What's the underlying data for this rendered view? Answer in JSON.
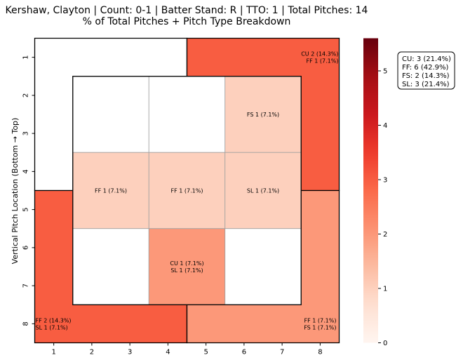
{
  "chart_data": {
    "type": "heatmap",
    "title": "Kershaw, Clayton | Count: 0-1 | Batter Stand: R | TTO: 1 | Total Pitches: 14",
    "subtitle": "% of Total Pitches + Pitch Type Breakdown",
    "xlabel": "",
    "ylabel": "Vertical Pitch Location (Bottom → Top)",
    "x_ticks": [
      "1",
      "2",
      "3",
      "4",
      "5",
      "6",
      "7",
      "8"
    ],
    "y_ticks": [
      "1",
      "2",
      "3",
      "4",
      "5",
      "6",
      "7",
      "8"
    ],
    "xlim": [
      0.5,
      8.5
    ],
    "ylim": [
      0.5,
      8.5
    ],
    "colorbar": {
      "min": 0,
      "max": 5.6,
      "ticks": [
        "0",
        "1",
        "2",
        "3",
        "4",
        "5"
      ],
      "colormap": "Reds"
    },
    "zones": [
      {
        "id": "outer-top-left",
        "count": 0,
        "labels": []
      },
      {
        "id": "outer-top-right",
        "count": 3,
        "labels": [
          "CU 2 (14.3%)",
          "FF 1 (7.1%)"
        ]
      },
      {
        "id": "outer-bottom-left",
        "count": 3,
        "labels": [
          "FF 2 (14.3%)",
          "SL 1 (7.1%)"
        ]
      },
      {
        "id": "outer-bottom-right",
        "count": 2,
        "labels": [
          "FF 1 (7.1%)",
          "FS 1 (7.1%)"
        ]
      },
      {
        "id": "inner-r1c1",
        "count": 0,
        "labels": []
      },
      {
        "id": "inner-r1c2",
        "count": 0,
        "labels": []
      },
      {
        "id": "inner-r1c3",
        "count": 1,
        "labels": [
          "FS 1 (7.1%)"
        ]
      },
      {
        "id": "inner-r2c1",
        "count": 1,
        "labels": [
          "FF 1 (7.1%)"
        ]
      },
      {
        "id": "inner-r2c2",
        "count": 1,
        "labels": [
          "FF 1 (7.1%)"
        ]
      },
      {
        "id": "inner-r2c3",
        "count": 1,
        "labels": [
          "SL 1 (7.1%)"
        ]
      },
      {
        "id": "inner-r3c1",
        "count": 0,
        "labels": []
      },
      {
        "id": "inner-r3c2",
        "count": 2,
        "labels": [
          "CU 1 (7.1%)",
          "SL 1 (7.1%)"
        ]
      },
      {
        "id": "inner-r3c3",
        "count": 0,
        "labels": []
      }
    ],
    "summary": [
      "CU: 3 (21.4%)",
      "FF: 6 (42.9%)",
      "FS: 2 (14.3%)",
      "SL: 3 (21.4%)"
    ],
    "grid": false,
    "legend_position": "top-right"
  }
}
